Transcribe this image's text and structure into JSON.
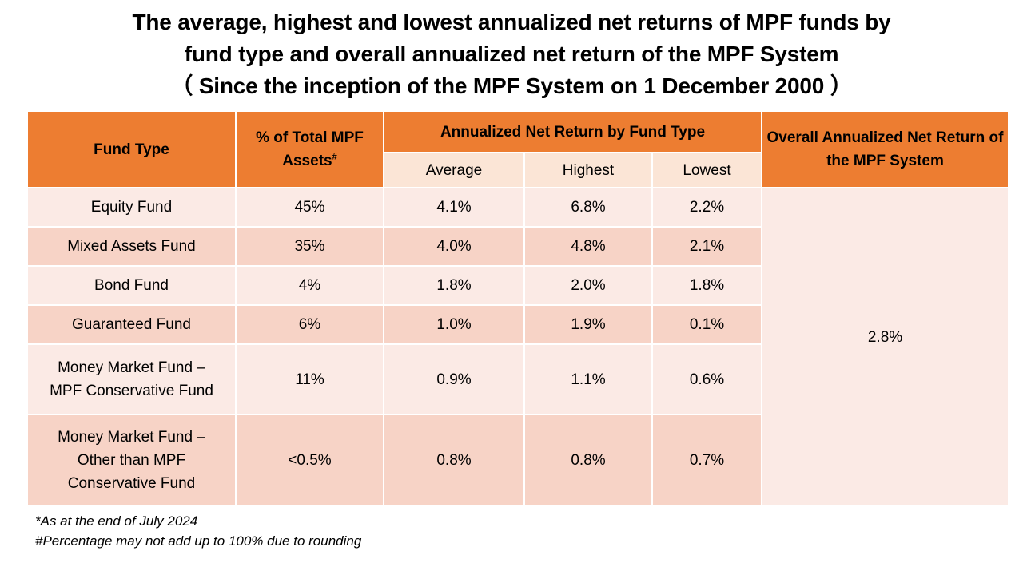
{
  "title": {
    "line1": "The average, highest and lowest annualized net returns of MPF funds by",
    "line2": "fund type and overall annualized net return of the MPF System",
    "line3": "（ Since the inception of the MPF System on 1 December 2000 ）"
  },
  "table": {
    "headers": {
      "fund_type": "Fund Type",
      "pct_assets": "% of Total MPF Assets",
      "pct_assets_mark": "#",
      "by_fund_type": "Annualized Net Return by Fund Type",
      "average": "Average",
      "highest": "Highest",
      "lowest": "Lowest",
      "overall": "Overall Annualized Net Return of the MPF System"
    },
    "rows": [
      {
        "fund_type": "Equity Fund",
        "pct": "45%",
        "average": "4.1%",
        "highest": "6.8%",
        "lowest": "2.2%"
      },
      {
        "fund_type": "Mixed Assets Fund",
        "pct": "35%",
        "average": "4.0%",
        "highest": "4.8%",
        "lowest": "2.1%"
      },
      {
        "fund_type": "Bond Fund",
        "pct": "4%",
        "average": "1.8%",
        "highest": "2.0%",
        "lowest": "1.8%"
      },
      {
        "fund_type": "Guaranteed Fund",
        "pct": "6%",
        "average": "1.0%",
        "highest": "1.9%",
        "lowest": "0.1%"
      },
      {
        "fund_type_lines": [
          "Money Market Fund –",
          "MPF Conservative Fund"
        ],
        "pct": "11%",
        "average": "0.9%",
        "highest": "1.1%",
        "lowest": "0.6%"
      },
      {
        "fund_type_lines": [
          "Money Market Fund –",
          "Other than MPF",
          "Conservative Fund"
        ],
        "pct": "<0.5%",
        "average": "0.8%",
        "highest": "0.8%",
        "lowest": "0.7%"
      }
    ],
    "overall_value": "2.8%"
  },
  "footnotes": {
    "note1": "*As at the end of July 2024",
    "note2": "#Percentage may not add up to 100% due to rounding"
  },
  "colors": {
    "header": "#ed7d31",
    "subheader": "#fbe5d6",
    "row_light": "#fbeae5",
    "row_dark": "#f7d3c6"
  }
}
